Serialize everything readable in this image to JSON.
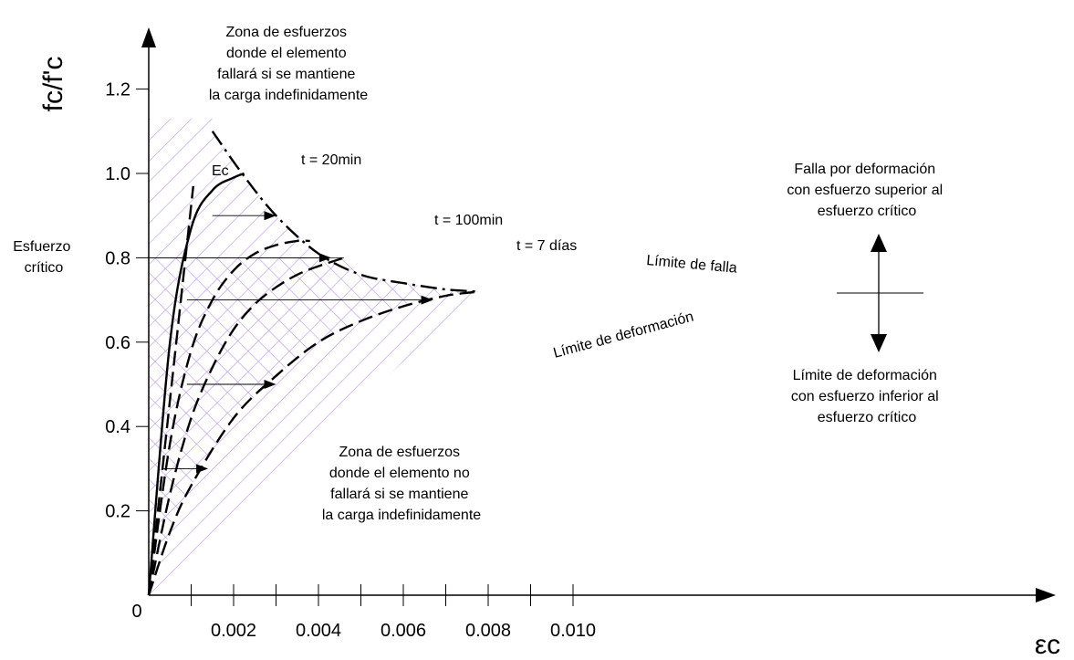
{
  "chart_data": {
    "type": "line",
    "title": "",
    "xlabel": "εc",
    "ylabel": "fc/f'c",
    "xlim": [
      0,
      0.0105
    ],
    "ylim": [
      0,
      1.25
    ],
    "origin_label": "0",
    "x_ticks": [
      {
        "value": 0.002,
        "label": "0.002"
      },
      {
        "value": 0.004,
        "label": "0.004"
      },
      {
        "value": 0.006,
        "label": "0.006"
      },
      {
        "value": 0.008,
        "label": "0.008"
      },
      {
        "value": 0.01,
        "label": "0.010"
      }
    ],
    "x_minor_ticks": [
      0.001,
      0.003,
      0.005,
      0.007,
      0.009
    ],
    "y_ticks": [
      {
        "value": 0.2,
        "label": "0.2"
      },
      {
        "value": 0.4,
        "label": "0.4"
      },
      {
        "value": 0.6,
        "label": "0.6"
      },
      {
        "value": 0.8,
        "label": "0.8"
      },
      {
        "value": 1.0,
        "label": "1.0"
      },
      {
        "value": 1.2,
        "label": "1.2"
      }
    ],
    "series": [
      {
        "name": "Ec",
        "style": "dashed",
        "x": [
          0,
          0.00105
        ],
        "y": [
          0,
          0.97
        ]
      },
      {
        "name": "t = 20min",
        "style": "solid",
        "x": [
          0,
          0.0005,
          0.001,
          0.0015,
          0.002,
          0.00225
        ],
        "y": [
          0,
          0.6,
          0.87,
          0.96,
          0.99,
          1.0
        ]
      },
      {
        "name": "t = 100min",
        "style": "dashed",
        "x": [
          0,
          0.0005,
          0.001,
          0.0015,
          0.002,
          0.0025,
          0.003,
          0.0035,
          0.0038
        ],
        "y": [
          0,
          0.36,
          0.58,
          0.7,
          0.77,
          0.81,
          0.83,
          0.84,
          0.84
        ]
      },
      {
        "name": "t = 7 días",
        "style": "dashed",
        "x": [
          0,
          0.0005,
          0.001,
          0.0015,
          0.002,
          0.0025,
          0.003,
          0.0035,
          0.004,
          0.0046
        ],
        "y": [
          0,
          0.24,
          0.42,
          0.54,
          0.63,
          0.69,
          0.73,
          0.76,
          0.78,
          0.8
        ]
      },
      {
        "name": "Límite de deformación",
        "style": "dashed",
        "x": [
          0,
          0.0005,
          0.001,
          0.002,
          0.003,
          0.004,
          0.005,
          0.006,
          0.007,
          0.0078
        ],
        "y": [
          0,
          0.15,
          0.26,
          0.42,
          0.52,
          0.6,
          0.65,
          0.685,
          0.71,
          0.72
        ]
      },
      {
        "name": "Límite de falla",
        "style": "dashdot",
        "x": [
          0.0015,
          0.0022,
          0.003,
          0.004,
          0.005,
          0.006,
          0.007,
          0.0078
        ],
        "y": [
          1.1,
          1.0,
          0.9,
          0.81,
          0.76,
          0.74,
          0.725,
          0.72
        ]
      }
    ],
    "creep_arrows": [
      {
        "y": 0.9,
        "x0": 0.0015,
        "x1": 0.003
      },
      {
        "y": 0.8,
        "x0": 0.0,
        "x1": 0.0043
      },
      {
        "y": 0.7,
        "x0": 0.0009,
        "x1": 0.0067
      },
      {
        "y": 0.5,
        "x0": 0.0009,
        "x1": 0.003
      },
      {
        "y": 0.3,
        "x0": 0.0003,
        "x1": 0.0014
      }
    ],
    "labels": {
      "critical_stress": [
        "Esfuerzo",
        "crítico"
      ],
      "zone_fail": [
        "Zona de esfuerzos",
        "donde el elemento",
        "fallará si se mantiene",
        "la carga indefinidamente"
      ],
      "zone_no_fail": [
        "Zona de esfuerzos",
        "donde el elemento no",
        "fallará si se mantiene",
        "la carga indefinidamente"
      ],
      "ec": "Ec",
      "t20": "t = 20min",
      "t100": "t = 100min",
      "t7": "t = 7 días",
      "fail_limit": "Límite de falla",
      "deform_limit": "Límite de deformación",
      "right_upper": [
        "Falla por deformación",
        "con esfuerzo superior al",
        "esfuerzo crítico"
      ],
      "right_lower": [
        "Límite de deformación",
        "con esfuerzo inferior al",
        "esfuerzo crítico"
      ]
    },
    "grid": false,
    "legend": "none",
    "colors": {
      "hatch": "#b48fe6",
      "ink": "#000000"
    }
  }
}
